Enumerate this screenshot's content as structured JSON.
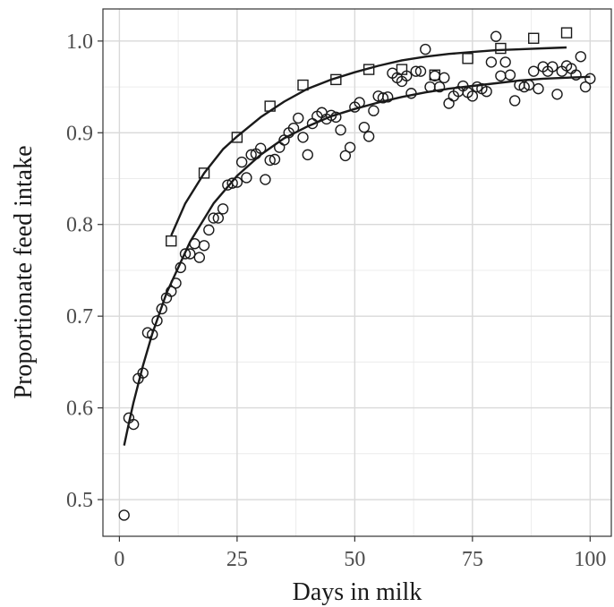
{
  "chart_data": {
    "type": "scatter",
    "title": "",
    "xlabel": "Days in milk",
    "ylabel": "Proportionate feed intake",
    "xlim": [
      -3.5,
      104.5
    ],
    "ylim": [
      0.46,
      1.035
    ],
    "x_ticks": [
      0,
      25,
      50,
      75,
      100
    ],
    "x_tick_labels": [
      "0",
      "25",
      "50",
      "75",
      "100"
    ],
    "y_ticks": [
      0.5,
      0.6,
      0.7,
      0.8,
      0.9,
      1.0
    ],
    "y_tick_labels": [
      "0.5",
      "0.6",
      "0.7",
      "0.8",
      "0.9",
      "1.0"
    ],
    "grid": true,
    "legend": "none",
    "series": [
      {
        "marker": "circle",
        "points": [
          [
            1,
            0.483
          ],
          [
            2,
            0.589
          ],
          [
            3,
            0.582
          ],
          [
            4,
            0.632
          ],
          [
            5,
            0.638
          ],
          [
            6,
            0.682
          ],
          [
            7,
            0.68
          ],
          [
            8,
            0.695
          ],
          [
            9,
            0.708
          ],
          [
            10,
            0.72
          ],
          [
            11,
            0.727
          ],
          [
            12,
            0.736
          ],
          [
            13,
            0.753
          ],
          [
            14,
            0.768
          ],
          [
            15,
            0.768
          ],
          [
            16,
            0.779
          ],
          [
            17,
            0.764
          ],
          [
            18,
            0.777
          ],
          [
            19,
            0.794
          ],
          [
            20,
            0.807
          ],
          [
            21,
            0.807
          ],
          [
            22,
            0.817
          ],
          [
            23,
            0.843
          ],
          [
            24,
            0.845
          ],
          [
            25,
            0.846
          ],
          [
            26,
            0.868
          ],
          [
            27,
            0.851
          ],
          [
            28,
            0.876
          ],
          [
            29,
            0.877
          ],
          [
            30,
            0.883
          ],
          [
            31,
            0.849
          ],
          [
            32,
            0.87
          ],
          [
            33,
            0.871
          ],
          [
            34,
            0.884
          ],
          [
            35,
            0.892
          ],
          [
            36,
            0.9
          ],
          [
            37,
            0.905
          ],
          [
            38,
            0.916
          ],
          [
            39,
            0.895
          ],
          [
            40,
            0.876
          ],
          [
            41,
            0.91
          ],
          [
            42,
            0.918
          ],
          [
            43,
            0.922
          ],
          [
            44,
            0.915
          ],
          [
            45,
            0.919
          ],
          [
            46,
            0.917
          ],
          [
            47,
            0.903
          ],
          [
            48,
            0.875
          ],
          [
            49,
            0.884
          ],
          [
            50,
            0.928
          ],
          [
            51,
            0.933
          ],
          [
            52,
            0.906
          ],
          [
            53,
            0.896
          ],
          [
            54,
            0.924
          ],
          [
            55,
            0.94
          ],
          [
            56,
            0.938
          ],
          [
            57,
            0.939
          ],
          [
            58,
            0.965
          ],
          [
            59,
            0.96
          ],
          [
            60,
            0.956
          ],
          [
            61,
            0.962
          ],
          [
            62,
            0.943
          ],
          [
            63,
            0.967
          ],
          [
            64,
            0.967
          ],
          [
            65,
            0.991
          ],
          [
            66,
            0.95
          ],
          [
            67,
            0.962
          ],
          [
            68,
            0.95
          ],
          [
            69,
            0.96
          ],
          [
            70,
            0.932
          ],
          [
            71,
            0.94
          ],
          [
            72,
            0.945
          ],
          [
            73,
            0.951
          ],
          [
            74,
            0.944
          ],
          [
            75,
            0.94
          ],
          [
            76,
            0.95
          ],
          [
            77,
            0.948
          ],
          [
            78,
            0.945
          ],
          [
            79,
            0.977
          ],
          [
            80,
            1.005
          ],
          [
            81,
            0.962
          ],
          [
            82,
            0.977
          ],
          [
            83,
            0.963
          ],
          [
            84,
            0.935
          ],
          [
            85,
            0.952
          ],
          [
            86,
            0.95
          ],
          [
            87,
            0.952
          ],
          [
            88,
            0.967
          ],
          [
            89,
            0.948
          ],
          [
            90,
            0.972
          ],
          [
            91,
            0.967
          ],
          [
            92,
            0.972
          ],
          [
            93,
            0.942
          ],
          [
            94,
            0.967
          ],
          [
            95,
            0.973
          ],
          [
            96,
            0.97
          ],
          [
            97,
            0.963
          ],
          [
            98,
            0.983
          ],
          [
            99,
            0.95
          ],
          [
            100,
            0.959
          ]
        ],
        "fit_curve": [
          [
            1,
            0.559
          ],
          [
            2,
            0.583
          ],
          [
            3,
            0.606
          ],
          [
            5,
            0.646
          ],
          [
            7,
            0.681
          ],
          [
            10,
            0.725
          ],
          [
            15,
            0.781
          ],
          [
            20,
            0.823
          ],
          [
            25,
            0.853
          ],
          [
            30,
            0.876
          ],
          [
            35,
            0.894
          ],
          [
            40,
            0.907
          ],
          [
            45,
            0.918
          ],
          [
            50,
            0.926
          ],
          [
            55,
            0.933
          ],
          [
            60,
            0.939
          ],
          [
            65,
            0.944
          ],
          [
            70,
            0.948
          ],
          [
            75,
            0.951
          ],
          [
            80,
            0.954
          ],
          [
            85,
            0.957
          ],
          [
            90,
            0.959
          ],
          [
            95,
            0.96
          ],
          [
            100,
            0.961
          ]
        ]
      },
      {
        "marker": "square",
        "points": [
          [
            11,
            0.782
          ],
          [
            18,
            0.856
          ],
          [
            25,
            0.895
          ],
          [
            32,
            0.929
          ],
          [
            39,
            0.952
          ],
          [
            46,
            0.958
          ],
          [
            53,
            0.969
          ],
          [
            60,
            0.969
          ],
          [
            67,
            0.963
          ],
          [
            74,
            0.981
          ],
          [
            81,
            0.992
          ],
          [
            88,
            1.003
          ],
          [
            95,
            1.009
          ]
        ],
        "fit_curve": [
          [
            11,
            0.788
          ],
          [
            14,
            0.823
          ],
          [
            18,
            0.856
          ],
          [
            22,
            0.882
          ],
          [
            25,
            0.896
          ],
          [
            30,
            0.917
          ],
          [
            35,
            0.934
          ],
          [
            40,
            0.948
          ],
          [
            45,
            0.958
          ],
          [
            50,
            0.966
          ],
          [
            55,
            0.973
          ],
          [
            60,
            0.979
          ],
          [
            65,
            0.983
          ],
          [
            70,
            0.986
          ],
          [
            75,
            0.988
          ],
          [
            80,
            0.99
          ],
          [
            85,
            0.991
          ],
          [
            90,
            0.992
          ],
          [
            95,
            0.993
          ]
        ]
      }
    ],
    "colors": {
      "panel_border": "#333333",
      "grid_major": "#d9d9d9",
      "grid_minor": "#ececec",
      "marker_stroke": "#1a1a1a",
      "fit_line": "#1a1a1a",
      "tick_label": "#4d4d4d",
      "axis_title": "#1a1a1a"
    }
  }
}
